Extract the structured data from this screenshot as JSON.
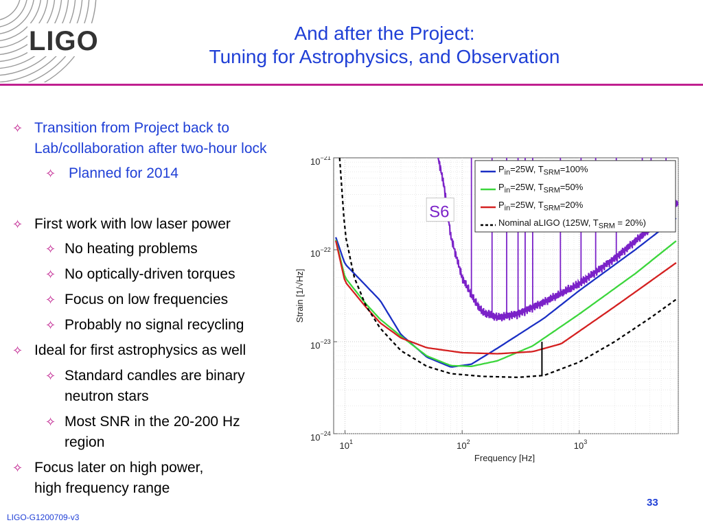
{
  "logo": {
    "text": "LIGO"
  },
  "title": {
    "line1": "And after the Project:",
    "line2": "Tuning for Astrophysics, and Observation"
  },
  "bullets": [
    {
      "text1": "Transition from Project back to",
      "text2": "Lab/collaboration after two-hour lock"
    },
    {
      "text": "Planned for 2014"
    },
    {
      "text": "First work with low laser power"
    },
    {
      "text": "No heating problems"
    },
    {
      "text": "No optically-driven torques"
    },
    {
      "text": "Focus on low frequencies"
    },
    {
      "text": "Probably no signal recycling"
    },
    {
      "text": "Ideal for first astrophysics as well"
    },
    {
      "text1": "Standard candles are binary",
      "text2": "neutron stars"
    },
    {
      "text1": "Most SNR in the 20-200 Hz",
      "text2": "region"
    },
    {
      "text1": "Focus later on high power,",
      "text2": "high frequency range"
    }
  ],
  "bullet_marker": "✧",
  "footer": {
    "doc_id": "LIGO-G1200709-v3",
    "page": "33"
  },
  "colors": {
    "title_blue": "#1f3fd6",
    "accent_magenta": "#c0208f",
    "s6_purple": "#7b22c8"
  },
  "chart_data": {
    "type": "line",
    "xlabel": "Frequency [Hz]",
    "ylabel": "Strain [1/√Hz]",
    "xscale": "log",
    "yscale": "log",
    "xlim": [
      8,
      7000
    ],
    "ylim": [
      1e-24,
      1e-21
    ],
    "xticks": [
      {
        "value": 10,
        "base": "10",
        "exp": "1"
      },
      {
        "value": 100,
        "base": "10",
        "exp": "2"
      },
      {
        "value": 1000,
        "base": "10",
        "exp": "3"
      }
    ],
    "yticks": [
      {
        "value": 1e-21,
        "base": "10",
        "exp": "−21"
      },
      {
        "value": 1e-22,
        "base": "10",
        "exp": "−22"
      },
      {
        "value": 1e-23,
        "base": "10",
        "exp": "−23"
      },
      {
        "value": 1e-24,
        "base": "10",
        "exp": "−24"
      }
    ],
    "grid": true,
    "legend_position": "top-right",
    "annotation": {
      "text": "S6",
      "x": 100,
      "y": 2.6e-22
    },
    "series": [
      {
        "name": "Pin=25W, TSRM=100%",
        "legend_html": "P<sub>in</sub>=25W, T<sub>SRM</sub>=100%",
        "color": "#1a2fc4",
        "style": "solid",
        "points": [
          [
            8,
            1.6e-22
          ],
          [
            10,
            7e-23
          ],
          [
            14,
            4.5e-23
          ],
          [
            20,
            2.8e-23
          ],
          [
            30,
            1.2e-23
          ],
          [
            50,
            6.8e-24
          ],
          [
            80,
            5.3e-24
          ],
          [
            120,
            5.7e-24
          ],
          [
            200,
            8.5e-24
          ],
          [
            500,
            1.8e-23
          ],
          [
            1000,
            3.6e-23
          ],
          [
            3000,
            1e-22
          ],
          [
            7000,
            2.3e-22
          ]
        ]
      },
      {
        "name": "Pin=25W, TSRM=50%",
        "legend_html": "P<sub>in</sub>=25W, T<sub>SRM</sub>=50%",
        "color": "#3cd63c",
        "style": "solid",
        "points": [
          [
            8,
            1.6e-22
          ],
          [
            10,
            5e-23
          ],
          [
            15,
            2.6e-23
          ],
          [
            20,
            1.75e-23
          ],
          [
            30,
            1.15e-23
          ],
          [
            50,
            7e-24
          ],
          [
            80,
            5.5e-24
          ],
          [
            120,
            5.4e-24
          ],
          [
            200,
            6.2e-24
          ],
          [
            400,
            9e-24
          ],
          [
            1000,
            2e-23
          ],
          [
            3000,
            5.5e-23
          ],
          [
            7000,
            1.3e-22
          ]
        ]
      },
      {
        "name": "Pin=25W, TSRM=20%",
        "legend_html": "P<sub>in</sub>=25W, T<sub>SRM</sub>=20%",
        "color": "#d42020",
        "style": "solid",
        "points": [
          [
            8,
            1.6e-22
          ],
          [
            10,
            4.5e-23
          ],
          [
            15,
            2.4e-23
          ],
          [
            20,
            1.6e-23
          ],
          [
            30,
            1.1e-23
          ],
          [
            50,
            8.6e-24
          ],
          [
            100,
            7.6e-24
          ],
          [
            200,
            7.4e-24
          ],
          [
            400,
            7.8e-24
          ],
          [
            700,
            9.5e-24
          ],
          [
            1000,
            1.3e-23
          ],
          [
            2000,
            2.4e-23
          ],
          [
            4000,
            4.5e-23
          ],
          [
            7000,
            7.5e-23
          ]
        ]
      },
      {
        "name": "Nominal aLIGO (125W, TSRM = 20%)",
        "legend_html": "Nominal aLIGO (125W, T<sub>SRM</sub> = 20%)",
        "color": "#000000",
        "style": "dashed",
        "points": [
          [
            9,
            1e-21
          ],
          [
            10,
            1.5e-22
          ],
          [
            12,
            5e-23
          ],
          [
            15,
            2.5e-23
          ],
          [
            20,
            1.4e-23
          ],
          [
            30,
            8e-24
          ],
          [
            50,
            5.4e-24
          ],
          [
            80,
            4.5e-24
          ],
          [
            150,
            4.2e-24
          ],
          [
            300,
            4.1e-24
          ],
          [
            500,
            4.3e-24
          ],
          [
            1000,
            6e-24
          ],
          [
            2000,
            1e-23
          ],
          [
            4000,
            1.8e-23
          ],
          [
            7000,
            3e-23
          ]
        ]
      },
      {
        "name": "S6",
        "color": "#7b22c8",
        "style": "solid",
        "noisy": true,
        "points": [
          [
            60,
            1.3e-21
          ],
          [
            70,
            5e-22
          ],
          [
            80,
            1.4e-22
          ],
          [
            100,
            5e-23
          ],
          [
            130,
            2.7e-23
          ],
          [
            150,
            2.1e-23
          ],
          [
            200,
            1.85e-23
          ],
          [
            300,
            2e-23
          ],
          [
            500,
            2.7e-23
          ],
          [
            1000,
            4.3e-23
          ],
          [
            2000,
            8e-23
          ],
          [
            4000,
            1.7e-22
          ],
          [
            7000,
            3.3e-22
          ]
        ]
      }
    ]
  }
}
